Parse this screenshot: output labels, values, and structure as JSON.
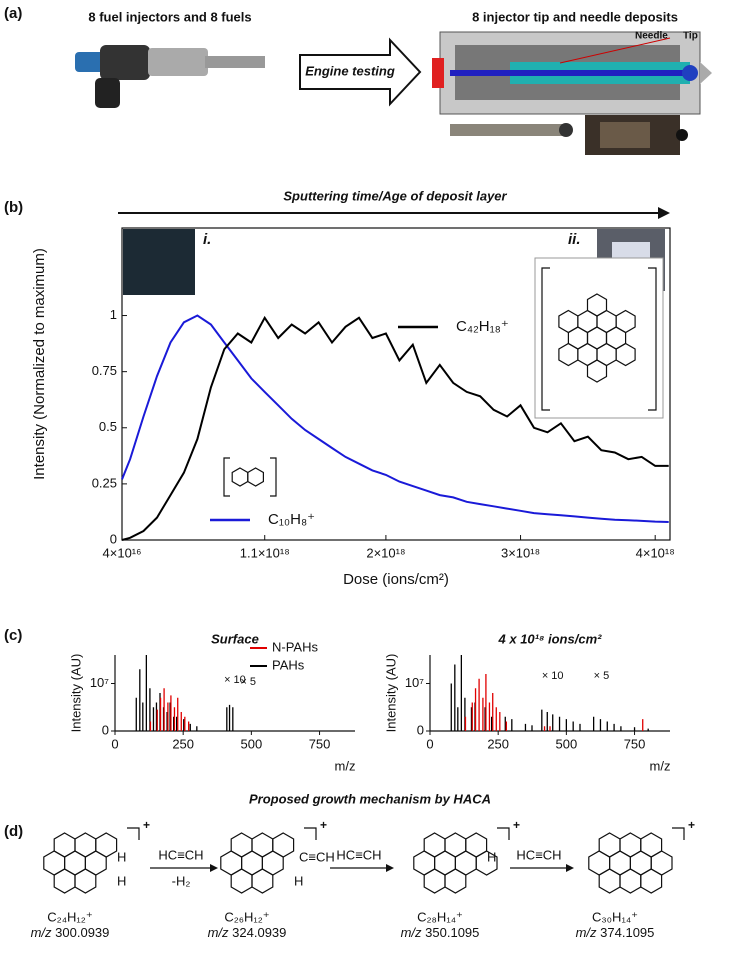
{
  "panel_labels": [
    "(a)",
    "(b)",
    "(c)",
    "(d)"
  ],
  "panel_a": {
    "left_caption": "8 fuel injectors and 8 fuels",
    "arrow_label": "Engine testing",
    "right_caption": "8 injector tip and needle deposits",
    "needle": "Needle",
    "tip": "Tip"
  },
  "chart_data": [
    {
      "type": "line",
      "title": "Sputtering time/Age of deposit layer",
      "x_label": "Dose (ions/cm²)",
      "y_label": "Intensity (Normalized to maximum)",
      "x": [
        4e+16,
        1e+17,
        2e+17,
        3e+17,
        4e+17,
        5e+17,
        6e+17,
        7e+17,
        8e+17,
        9e+17,
        1e+18,
        1.1e+18,
        1.2e+18,
        1.3e+18,
        1.4e+18,
        1.5e+18,
        1.6e+18,
        1.7e+18,
        1.8e+18,
        1.9e+18,
        2e+18,
        2.1e+18,
        2.2e+18,
        2.3e+18,
        2.4e+18,
        2.5e+18,
        2.6e+18,
        2.7e+18,
        2.8e+18,
        2.9e+18,
        3e+18,
        3.1e+18,
        3.2e+18,
        3.3e+18,
        3.4e+18,
        3.5e+18,
        3.6e+18,
        3.7e+18,
        3.8e+18,
        3.9e+18,
        4e+18,
        4.1e+18
      ],
      "series": [
        {
          "name": "C₁₀H₈⁺",
          "color": "#1a1ad8",
          "values": [
            0.27,
            0.36,
            0.55,
            0.73,
            0.88,
            0.97,
            1.0,
            0.96,
            0.88,
            0.8,
            0.72,
            0.66,
            0.6,
            0.54,
            0.49,
            0.45,
            0.41,
            0.37,
            0.34,
            0.31,
            0.29,
            0.26,
            0.24,
            0.22,
            0.2,
            0.19,
            0.17,
            0.16,
            0.15,
            0.14,
            0.13,
            0.12,
            0.115,
            0.11,
            0.105,
            0.1,
            0.095,
            0.09,
            0.088,
            0.085,
            0.082,
            0.08
          ]
        },
        {
          "name": "C₄₂H₁₈⁺",
          "color": "#000000",
          "values": [
            0,
            0.01,
            0.04,
            0.1,
            0.2,
            0.3,
            0.45,
            0.68,
            0.85,
            0.92,
            0.88,
            0.99,
            0.9,
            0.96,
            0.92,
            0.97,
            0.88,
            0.95,
            0.99,
            0.9,
            0.92,
            0.8,
            0.87,
            0.7,
            0.78,
            0.7,
            0.66,
            0.64,
            0.58,
            0.55,
            0.6,
            0.5,
            0.48,
            0.52,
            0.44,
            0.46,
            0.4,
            0.39,
            0.36,
            0.37,
            0.33,
            0.33
          ]
        }
      ],
      "xlim": [
        4e+16,
        4.11e+18
      ],
      "ylim": [
        0,
        1.39
      ],
      "xticks": [
        {
          "value": 4e+16,
          "label": "4×10¹⁶"
        },
        {
          "value": 1.1e+18,
          "label": "1.1×10¹⁸"
        },
        {
          "value": 2e+18,
          "label": "2×10¹⁸"
        },
        {
          "value": 3e+18,
          "label": "3×10¹⁸"
        },
        {
          "value": 4e+18,
          "label": "4×10¹⁸"
        }
      ],
      "yticks": [
        0,
        0.25,
        0.5,
        0.75,
        1
      ],
      "annotations": [
        "i.",
        "ii."
      ]
    },
    {
      "type": "stem",
      "title": "Surface",
      "x_label": "m/z",
      "y_label": "Intensity (AU)",
      "xlim": [
        0,
        880
      ],
      "xticks": [
        0,
        250,
        500,
        750
      ],
      "ylim": [
        0,
        16000000.0
      ],
      "yticks": [
        0,
        {
          "value": 10000000.0,
          "label": "10⁷"
        }
      ],
      "legend": "upper right",
      "series": [
        {
          "name": "N-PAHs",
          "color": "#e00000",
          "x": [
            130,
            155,
            167,
            180,
            194,
            205,
            218,
            230,
            243,
            256,
            270
          ],
          "values": [
            2000000.0,
            4500000.0,
            7000000.0,
            9000000.0,
            6000000.0,
            7500000.0,
            5000000.0,
            7000000.0,
            4000000.0,
            3000000.0,
            2000000.0
          ]
        },
        {
          "name": "PAHs",
          "color": "#000000",
          "x": [
            78,
            91,
            102,
            115,
            128,
            141,
            152,
            165,
            178,
            191,
            202,
            215,
            226,
            252,
            276,
            300,
            410,
            420,
            432
          ],
          "values": [
            7000000.0,
            13000000.0,
            6000000.0,
            16000000.0,
            9000000.0,
            5000000.0,
            6000000.0,
            8000000.0,
            5000000.0,
            4000000.0,
            6000000.0,
            3000000.0,
            3000000.0,
            2500000.0,
            1500000.0,
            1000000.0,
            5000000.0,
            5500000.0,
            5000000.0
          ]
        }
      ],
      "annotations": [
        "× 10",
        "× 5"
      ]
    },
    {
      "type": "stem",
      "title": "4 x 10¹⁸ ions/cm²",
      "x_label": "m/z",
      "y_label": "Intensity (AU)",
      "xlim": [
        0,
        880
      ],
      "xticks": [
        0,
        250,
        500,
        750
      ],
      "ylim": [
        0,
        16000000.0
      ],
      "yticks": [
        0,
        {
          "value": 10000000.0,
          "label": "10⁷"
        }
      ],
      "series": [
        {
          "name": "N-PAHs",
          "color": "#e00000",
          "x": [
            130,
            155,
            167,
            180,
            194,
            205,
            218,
            230,
            243,
            256,
            280,
            420,
            440,
            780
          ],
          "values": [
            3000000.0,
            6000000.0,
            9000000.0,
            11000000.0,
            7000000.0,
            12000000.0,
            6000000.0,
            8000000.0,
            5000000.0,
            4000000.0,
            2000000.0,
            1000000.0,
            1000000.0,
            2500000.0
          ]
        },
        {
          "name": "PAHs",
          "color": "#000000",
          "x": [
            78,
            91,
            102,
            115,
            128,
            152,
            165,
            202,
            226,
            276,
            300,
            350,
            374,
            410,
            430,
            450,
            475,
            500,
            525,
            550,
            600,
            625,
            650,
            675,
            700,
            750,
            800
          ],
          "values": [
            10000000.0,
            14000000.0,
            5000000.0,
            16000000.0,
            7000000.0,
            5000000.0,
            6000000.0,
            5000000.0,
            3000000.0,
            3000000.0,
            2500000.0,
            1500000.0,
            1200000.0,
            4500000.0,
            4000000.0,
            3500000.0,
            3000000.0,
            2500000.0,
            2000000.0,
            1500000.0,
            3000000.0,
            2500000.0,
            2000000.0,
            1500000.0,
            1000000.0,
            800000.0,
            500000.0
          ]
        }
      ],
      "annotations": [
        "× 10",
        "× 5"
      ]
    }
  ],
  "panel_d": {
    "title": "Proposed growth mechanism by HACA",
    "molecules": [
      {
        "formula": "C₂₄H₁₂⁺",
        "mz_label": "m/z",
        "mz": 300.0939,
        "atoms": [
          "H",
          "H"
        ]
      },
      {
        "formula": "C₂₆H₁₂⁺",
        "mz_label": "m/z",
        "mz": 324.0939,
        "atoms": [
          "C≡CH",
          "H"
        ]
      },
      {
        "formula": "C₂₈H₁₄⁺",
        "mz_label": "m/z",
        "mz": 350.1095,
        "atoms": [
          "H"
        ]
      },
      {
        "formula": "C₃₀H₁₄⁺",
        "mz_label": "m/z",
        "mz": 374.1095,
        "atoms": []
      }
    ],
    "reagents": [
      {
        "top": "HC≡CH",
        "bottom": "-H₂"
      },
      {
        "top": "HC≡CH"
      },
      {
        "top": "HC≡CH"
      }
    ]
  }
}
